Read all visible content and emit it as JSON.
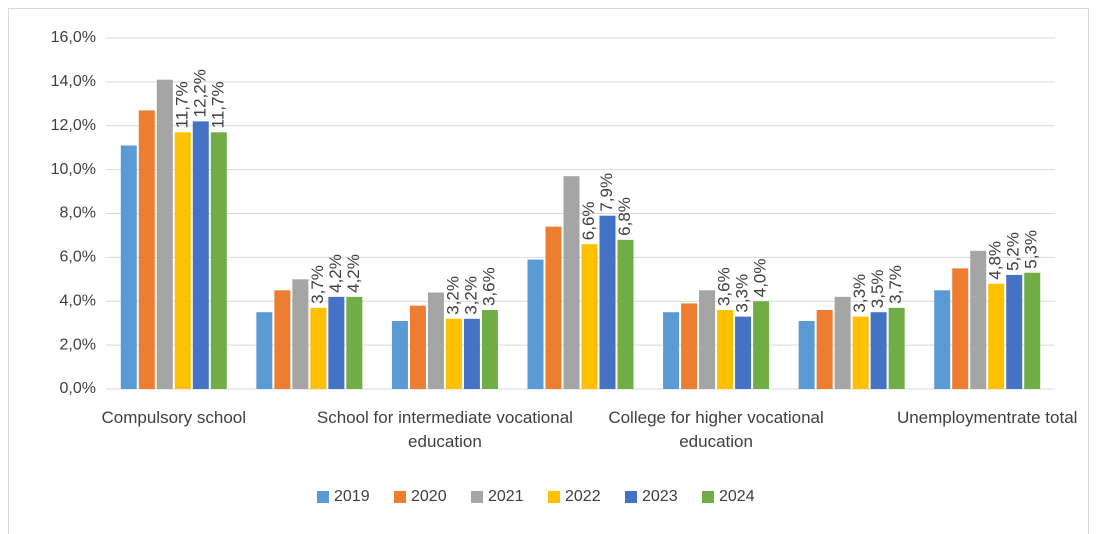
{
  "chart_data": {
    "type": "bar",
    "categories": [
      "Compulsory school",
      null,
      "School for intermediate vocational education",
      null,
      "College for higher vocational education",
      null,
      "Unemploymentrate total"
    ],
    "series": [
      {
        "name": "2019",
        "color": "#5b9bd5",
        "values": [
          11.1,
          3.5,
          3.1,
          5.9,
          3.5,
          3.1,
          4.5
        ]
      },
      {
        "name": "2020",
        "color": "#ed7d31",
        "values": [
          12.7,
          4.5,
          3.8,
          7.4,
          3.9,
          3.6,
          5.5
        ]
      },
      {
        "name": "2021",
        "color": "#a5a5a5",
        "values": [
          14.1,
          5.0,
          4.4,
          9.7,
          4.5,
          4.2,
          6.3
        ]
      },
      {
        "name": "2022",
        "color": "#ffc000",
        "values": [
          11.7,
          3.7,
          3.2,
          6.6,
          3.6,
          3.3,
          4.8
        ],
        "value_labels": [
          "11,7%",
          "3,7%",
          "3,2%",
          "6,6%",
          "3,6%",
          "3,3%",
          "4,8%"
        ]
      },
      {
        "name": "2023",
        "color": "#4472c4",
        "values": [
          12.2,
          4.2,
          3.2,
          7.9,
          3.3,
          3.5,
          5.2
        ],
        "value_labels": [
          "12,2%",
          "4,2%",
          "3,2%",
          "7,9%",
          "3,3%",
          "3,5%",
          "5,2%"
        ]
      },
      {
        "name": "2024",
        "color": "#70ad47",
        "values": [
          11.7,
          4.2,
          3.6,
          6.8,
          4.0,
          3.7,
          5.3
        ],
        "value_labels": [
          "11,7%",
          "4,2%",
          "3,6%",
          "6,8%",
          "4,0%",
          "3,7%",
          "5,3%"
        ]
      }
    ],
    "ylim": [
      0,
      16
    ],
    "yticks": [
      {
        "value": 0,
        "label": "0,0%"
      },
      {
        "value": 2,
        "label": "2,0%"
      },
      {
        "value": 4,
        "label": "4,0%"
      },
      {
        "value": 6,
        "label": "6,0%"
      },
      {
        "value": 8,
        "label": "8,0%"
      },
      {
        "value": 10,
        "label": "10,0%"
      },
      {
        "value": 12,
        "label": "12,0%"
      },
      {
        "value": 14,
        "label": "14,0%"
      },
      {
        "value": 16,
        "label": "16,0%"
      }
    ],
    "grid": true,
    "legend": "bottom"
  }
}
